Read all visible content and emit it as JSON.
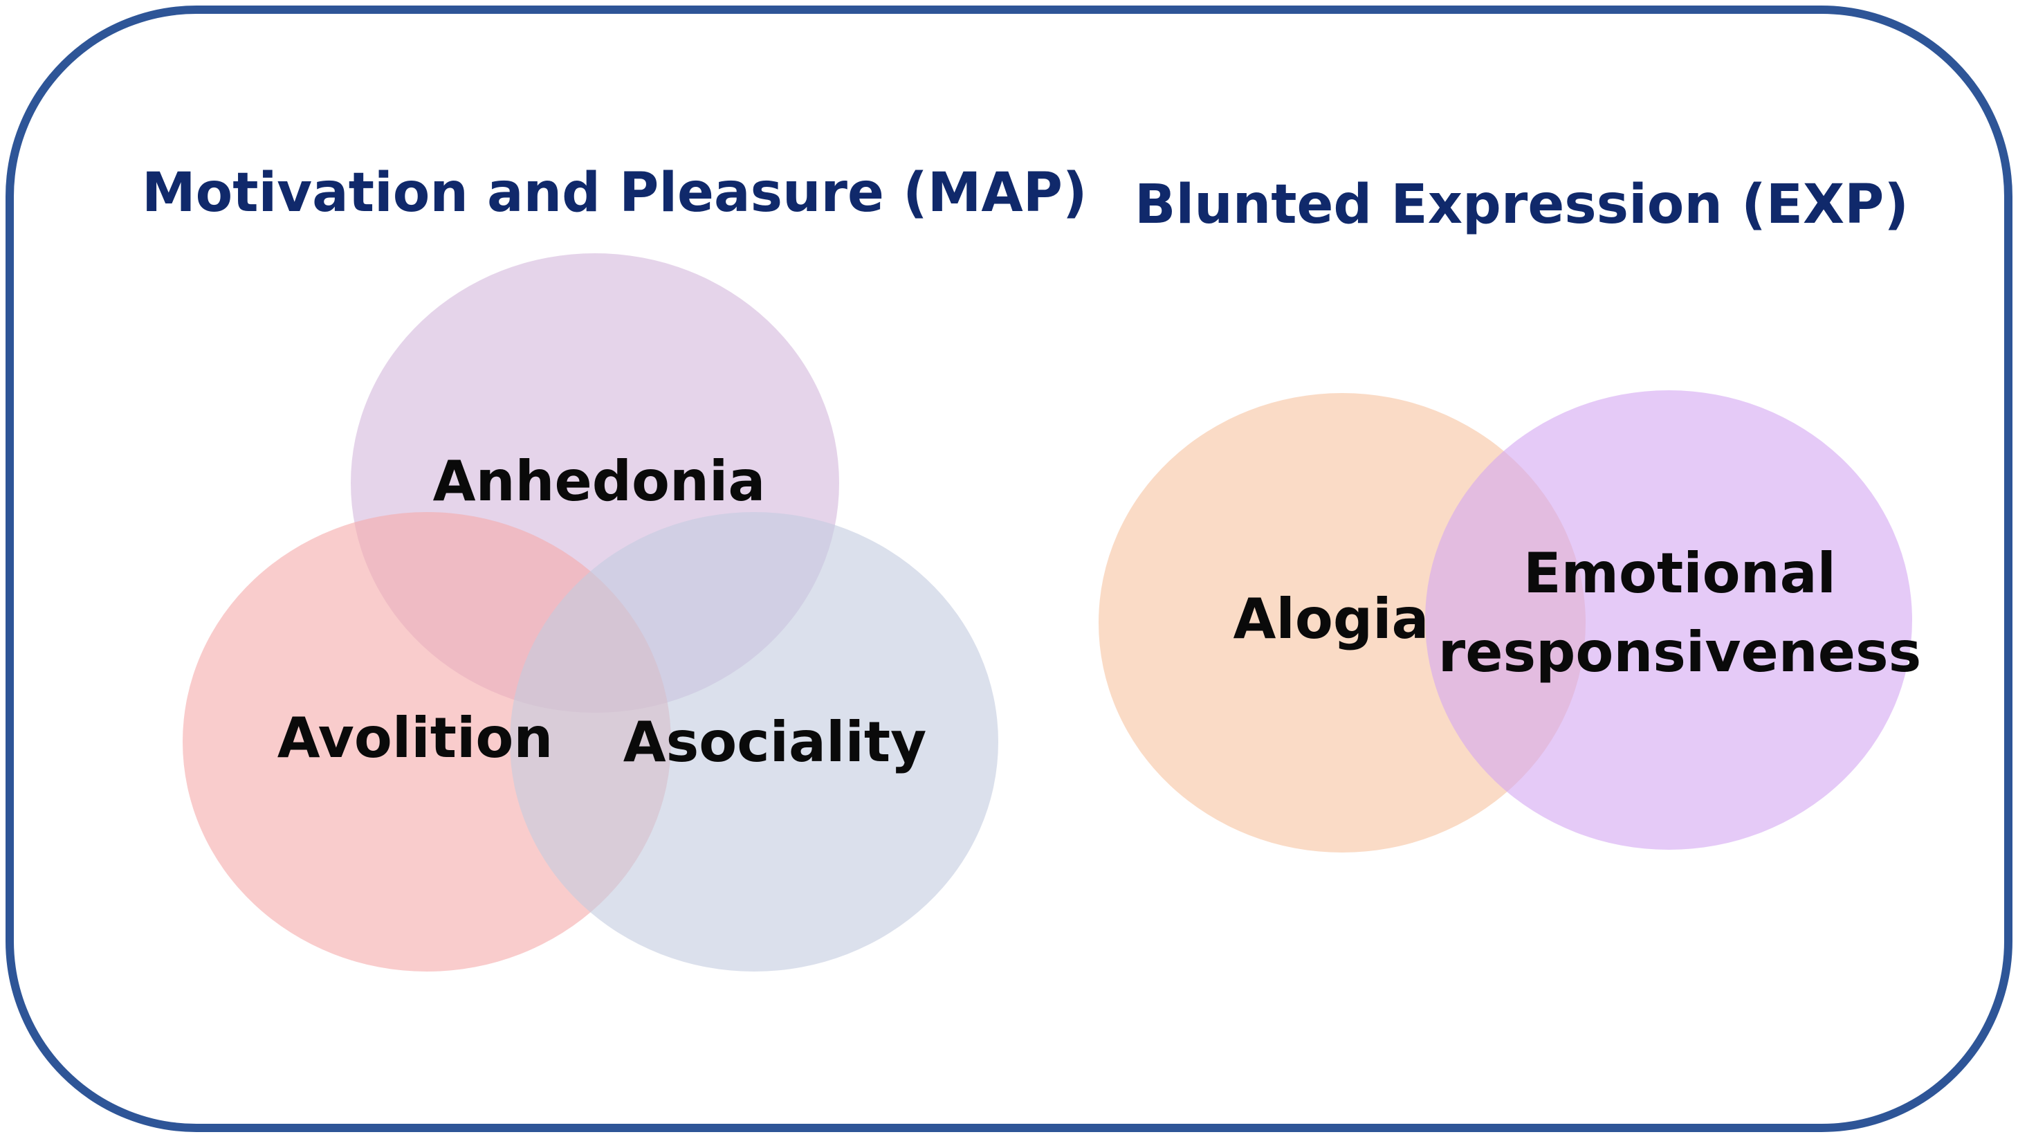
{
  "colors": {
    "frame_border": "#2e5597",
    "title_text": "#10296b",
    "label_text": "#0a0a0a",
    "anhedonia": "#dcc6e3",
    "avolition": "#f5aaaa",
    "asociality": "#c3cbe0",
    "alogia": "#f8cfb3",
    "emotional_responsiveness": "#d4a6f2"
  },
  "map_panel": {
    "title": "Motivation and Pleasure (MAP)",
    "circles": [
      {
        "label": "Anhedonia"
      },
      {
        "label": "Avolition"
      },
      {
        "label": "Asociality"
      }
    ]
  },
  "exp_panel": {
    "title": "Blunted Expression (EXP)",
    "circles": [
      {
        "label": "Alogia"
      },
      {
        "label_lines": [
          "Emotional",
          "responsiveness"
        ]
      }
    ]
  }
}
